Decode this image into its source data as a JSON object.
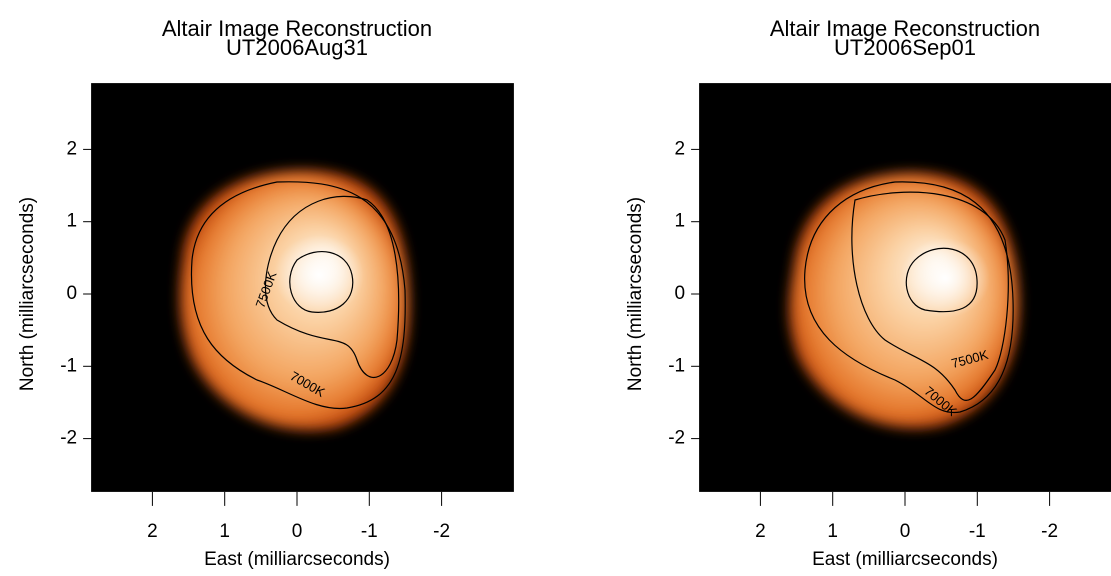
{
  "chart_data": [
    {
      "type": "image",
      "title": [
        "Altair Image Reconstruction",
        "UT2006Aug31"
      ],
      "xlabel": "East (milliarcseconds)",
      "ylabel": "North (milliarcseconds)",
      "xlim": [
        3,
        -3
      ],
      "ylim": [
        -3,
        3
      ],
      "xticks": [
        2,
        1,
        0,
        -1,
        -2
      ],
      "yticks": [
        2,
        1,
        0,
        -1,
        -2
      ],
      "contour_labels": [
        "7500K",
        "7000K"
      ]
    },
    {
      "type": "image",
      "title": [
        "Altair Image Reconstruction",
        "UT2006Sep01"
      ],
      "xlabel": "East (milliarcseconds)",
      "ylabel": "North (milliarcseconds)",
      "xlim": [
        3,
        -3
      ],
      "ylim": [
        -3,
        3
      ],
      "xticks": [
        2,
        1,
        0,
        -1,
        -2
      ],
      "yticks": [
        2,
        1,
        0,
        -1,
        -2
      ],
      "contour_labels": [
        "7500K",
        "7000K"
      ]
    }
  ]
}
